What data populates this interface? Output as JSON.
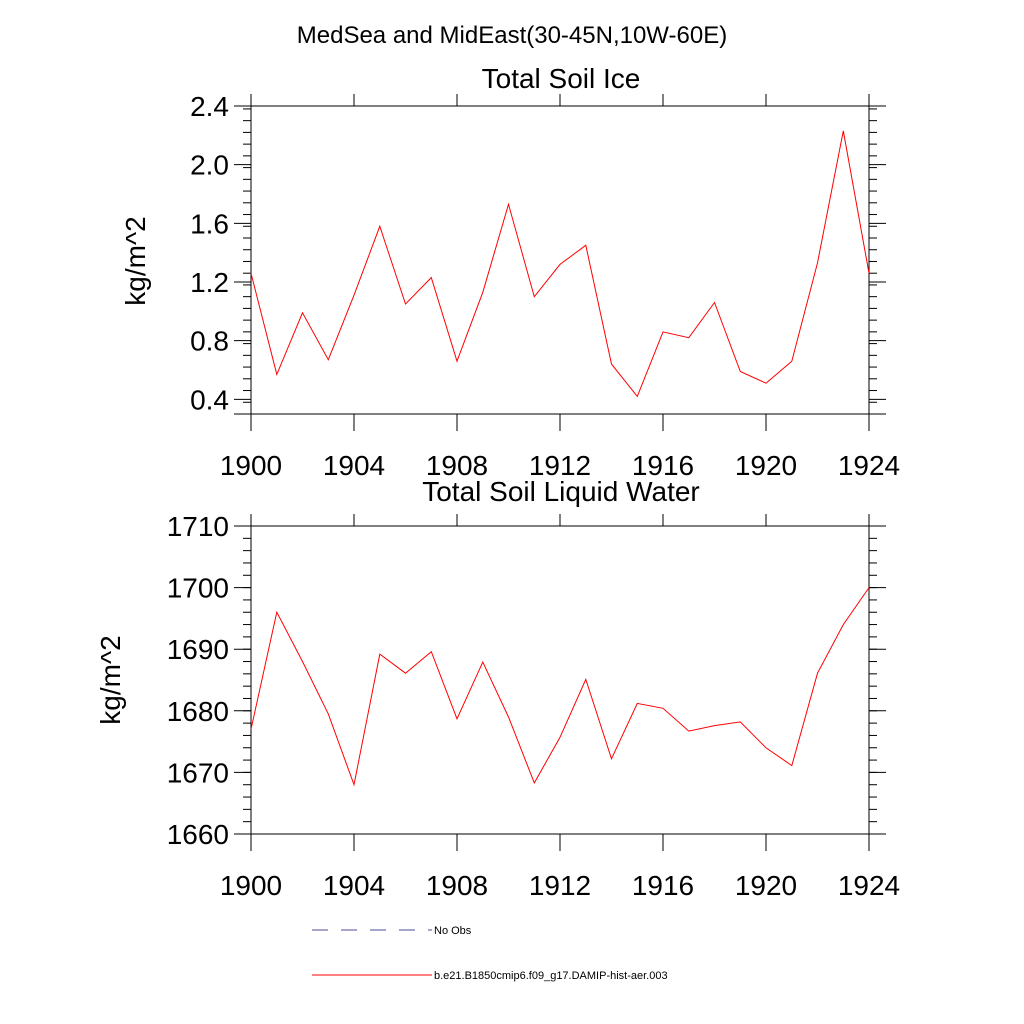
{
  "page_title": "MedSea and MidEast(30-45N,10W-60E)",
  "colors": {
    "series": "#ff0000",
    "no_obs": "#4d4d99",
    "axis": "#000000"
  },
  "legend": [
    {
      "label": "No Obs",
      "style": "dashed",
      "color": "#4d4d99"
    },
    {
      "label": "b.e21.B1850cmip6.f09_g17.DAMIP-hist-aer.003",
      "style": "solid",
      "color": "#ff0000"
    }
  ],
  "chart_data": [
    {
      "type": "line",
      "title": "Total Soil Ice",
      "xlabel": "",
      "ylabel": "kg/m^2",
      "xlim": [
        1900,
        1924
      ],
      "ylim": [
        0.3,
        2.4
      ],
      "x_ticks": [
        "1900",
        "1904",
        "1908",
        "1912",
        "1916",
        "1920",
        "1924"
      ],
      "y_ticks": [
        "0.4",
        "0.8",
        "1.2",
        "1.6",
        "2.0",
        "2.4"
      ],
      "series": [
        {
          "name": "b.e21.B1850cmip6.f09_g17.DAMIP-hist-aer.003",
          "x": [
            1900,
            1901,
            1902,
            1903,
            1904,
            1905,
            1906,
            1907,
            1908,
            1909,
            1910,
            1911,
            1912,
            1913,
            1914,
            1915,
            1916,
            1917,
            1918,
            1919,
            1920,
            1921,
            1922,
            1923,
            1924
          ],
          "values": [
            1.26,
            0.57,
            0.99,
            0.67,
            1.11,
            1.58,
            1.05,
            1.23,
            0.66,
            1.13,
            1.73,
            1.1,
            1.32,
            1.45,
            0.64,
            0.42,
            0.86,
            0.82,
            1.06,
            0.59,
            0.51,
            0.66,
            1.33,
            2.23,
            1.26
          ]
        }
      ]
    },
    {
      "type": "line",
      "title": "Total Soil Liquid Water",
      "xlabel": "",
      "ylabel": "kg/m^2",
      "xlim": [
        1900,
        1924
      ],
      "ylim": [
        1660,
        1710
      ],
      "x_ticks": [
        "1900",
        "1904",
        "1908",
        "1912",
        "1916",
        "1920",
        "1924"
      ],
      "y_ticks": [
        "1660",
        "1670",
        "1680",
        "1690",
        "1700",
        "1710"
      ],
      "series": [
        {
          "name": "b.e21.B1850cmip6.f09_g17.DAMIP-hist-aer.003",
          "x": [
            1900,
            1901,
            1902,
            1903,
            1904,
            1905,
            1906,
            1907,
            1908,
            1909,
            1910,
            1911,
            1912,
            1913,
            1914,
            1915,
            1916,
            1917,
            1918,
            1919,
            1920,
            1921,
            1922,
            1923,
            1924
          ],
          "values": [
            1677,
            1696,
            1688,
            1679.5,
            1668,
            1689.2,
            1686.1,
            1689.6,
            1678.7,
            1687.9,
            1679,
            1668.3,
            1675.7,
            1685.1,
            1672.2,
            1681.2,
            1680.4,
            1676.7,
            1677.6,
            1678.2,
            1674,
            1671.1,
            1686.1,
            1694,
            1700
          ]
        }
      ]
    }
  ]
}
